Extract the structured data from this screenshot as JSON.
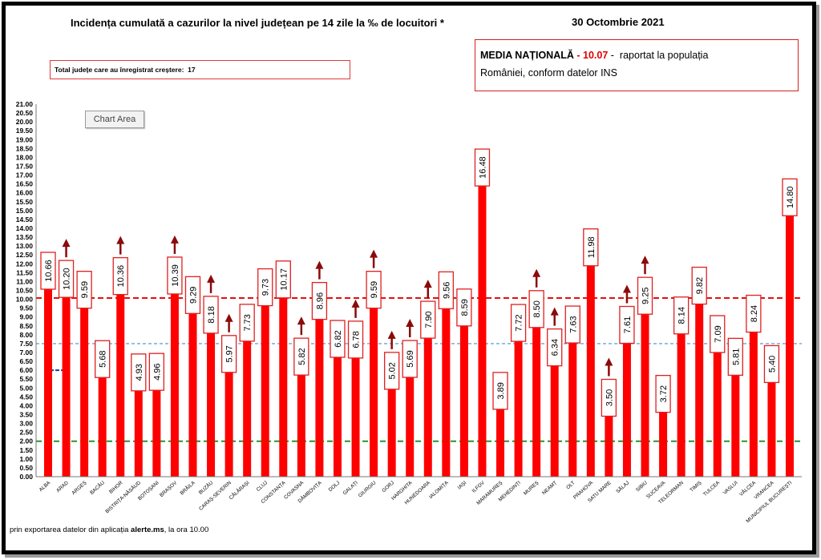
{
  "header": {
    "date": "30 Octombrie 2021"
  },
  "increase_box": {
    "label": "Total județe care au înregistrat creștere:",
    "value": "17"
  },
  "national_average": {
    "label": "MEDIA NAȚIONALĂ",
    "dash_before": "-",
    "value": "10.07",
    "dash_after": "-",
    "text_line1": "raportat la populația",
    "text_line2": "României, conform datelor INS"
  },
  "tooltip": {
    "label": "Chart Area"
  },
  "footer": {
    "prefix": "prin exportarea datelor din aplicația",
    "app": "alerte.ms",
    "suffix": ", la ora 10.00"
  },
  "colors": {
    "bar": "#ff0000",
    "label_border": "#e02020",
    "arrow": "#8b0a0a",
    "axis": "#777777"
  },
  "chart_data": {
    "type": "bar",
    "title": "Incidența cumulată a cazurilor la nivel județean pe 14 zile la ‰ de locuitori *",
    "xlabel": "",
    "ylabel": "",
    "ylim": [
      0,
      21
    ],
    "grid": false,
    "legend": "none",
    "ytick_labels": [
      "0.00",
      "0.50",
      "1.00",
      "1.50",
      "2.00",
      "2.50",
      "3.00",
      "3.50",
      "4.00",
      "4.50",
      "5.00",
      "5.50",
      "6.00",
      "6.50",
      "7.00",
      "7.50",
      "8.00",
      "8.50",
      "9.00",
      "9.50",
      "10.00",
      "10.50",
      "11.00",
      "11.50",
      "12.00",
      "12.50",
      "13.00",
      "13.50",
      "14.00",
      "14.50",
      "15.00",
      "15.50",
      "16.00",
      "16.50",
      "17.00",
      "17.50",
      "18.00",
      "18.50",
      "19.00",
      "19.50",
      "20.00",
      "20.50",
      "21.00"
    ],
    "categories": [
      "ALBA",
      "ARAD",
      "ARGEȘ",
      "BACĂU",
      "BIHOR",
      "BISTRIȚA-NĂSĂUD",
      "BOTOȘANI",
      "BRAȘOV",
      "BRĂILA",
      "BUZĂU",
      "CARAȘ-SEVERIN",
      "CĂLĂRAȘI",
      "CLUJ",
      "CONSTANȚA",
      "COVASNA",
      "DÂMBOVIȚA",
      "DOLJ",
      "GALAȚI",
      "GIURGIU",
      "GORJ",
      "HARGHITA",
      "HUNEDOARA",
      "IALOMIȚA",
      "IAȘI",
      "ILFOV",
      "MARAMUREȘ",
      "MEHEDINȚI",
      "MUREȘ",
      "NEAMȚ",
      "OLT",
      "PRAHOVA",
      "SATU MARE",
      "SĂLAJ",
      "SIBIU",
      "SUCEAVA",
      "TELEORMAN",
      "TIMIȘ",
      "TULCEA",
      "VASLUI",
      "VÂLCEA",
      "VRANCEA",
      "MUNICIPIUL BUCUREȘTI"
    ],
    "values": [
      10.66,
      10.2,
      9.59,
      5.68,
      10.36,
      4.93,
      4.96,
      10.39,
      9.29,
      8.18,
      5.97,
      7.73,
      9.73,
      10.17,
      5.82,
      8.96,
      6.82,
      6.78,
      9.59,
      5.02,
      5.69,
      7.9,
      9.56,
      8.59,
      16.48,
      3.89,
      7.72,
      8.5,
      6.34,
      7.63,
      11.98,
      3.5,
      7.61,
      9.25,
      3.72,
      8.14,
      9.82,
      7.09,
      5.81,
      8.24,
      5.4,
      14.8
    ],
    "data_labels": [
      "10.66",
      "10.20",
      "9.59",
      "5.68",
      "10.36",
      "4.93",
      "4.96",
      "10.39",
      "9.29",
      "8.18",
      "5.97",
      "7.73",
      "9.73",
      "10.17",
      "5.82",
      "8.96",
      "6.82",
      "6.78",
      "9.59",
      "5.02",
      "5.69",
      "7.90",
      "9.56",
      "8.59",
      "16.48",
      "3.89",
      "7.72",
      "8.50",
      "6.34",
      "7.63",
      "11.98",
      "3.50",
      "7.61",
      "9.25",
      "3.72",
      "8.14",
      "9.82",
      "7.09",
      "5.81",
      "8.24",
      "5.40",
      "14.80"
    ],
    "increase_arrows": [
      false,
      true,
      false,
      false,
      true,
      false,
      false,
      true,
      false,
      true,
      true,
      false,
      false,
      false,
      true,
      true,
      false,
      true,
      true,
      true,
      true,
      true,
      false,
      false,
      false,
      false,
      false,
      true,
      true,
      false,
      false,
      true,
      true,
      true,
      false,
      false,
      false,
      false,
      false,
      false,
      false,
      false
    ],
    "reference_lines": [
      {
        "value": 10.07,
        "color": "#e01010"
      },
      {
        "value": 7.5,
        "color": "#4a8fcf"
      },
      {
        "value": 2.0,
        "color": "#1e9a2a"
      }
    ],
    "short_marker": {
      "value": 6.0,
      "color": "#1f3a9c"
    }
  }
}
